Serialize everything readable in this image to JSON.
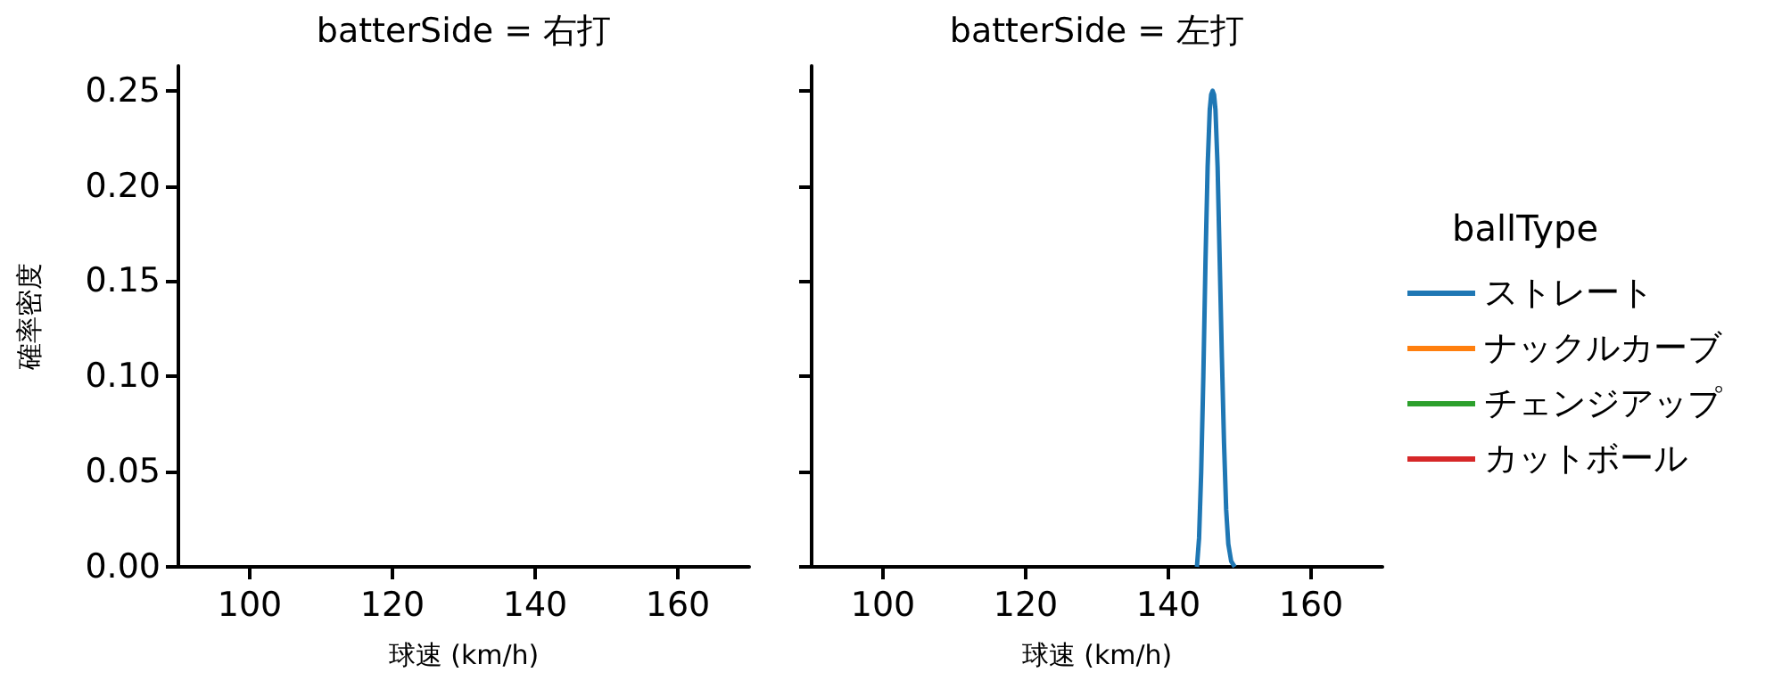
{
  "chart_data": [
    {
      "type": "line",
      "title": "batterSide = 右打",
      "xlabel": "球速 (km/h)",
      "ylabel": "確率密度",
      "xlim": [
        90,
        170
      ],
      "xticks": [
        100,
        120,
        140,
        160
      ],
      "ylim": [
        0,
        0.263
      ],
      "yticks": [
        {
          "value": 0,
          "label": "0.00"
        },
        {
          "value": 0.05,
          "label": "0.05"
        },
        {
          "value": 0.1,
          "label": "0.10"
        },
        {
          "value": 0.15,
          "label": "0.15"
        },
        {
          "value": 0.2,
          "label": "0.20"
        },
        {
          "value": 0.25,
          "label": "0.25"
        }
      ]
    },
    {
      "type": "line",
      "title": "batterSide = 左打",
      "xlabel": "球速 (km/h)",
      "legend_title": "ballType",
      "legend": "right",
      "marker": "none",
      "tick_labels": "x",
      "xlim": [
        90,
        170
      ],
      "xticks": [
        100,
        120,
        140,
        160
      ],
      "ylim": [
        0,
        0.263
      ],
      "yticks": [
        0,
        0.05,
        0.1,
        0.15,
        0.2,
        0.25
      ],
      "x": [
        144,
        144.3,
        144.6,
        144.9,
        145.2,
        145.5,
        145.8,
        146,
        146.2,
        146.4,
        146.6,
        146.9,
        147.2,
        147.5,
        147.8,
        148.1,
        148.4,
        148.8,
        149.3
      ],
      "series": [
        {
          "name": "ストレート",
          "color": "#1f77b4",
          "values": [
            0,
            0.015,
            0.05,
            0.1,
            0.16,
            0.21,
            0.24,
            0.248,
            0.25,
            0.248,
            0.24,
            0.21,
            0.16,
            0.11,
            0.065,
            0.03,
            0.012,
            0.003,
            0
          ]
        },
        {
          "name": "ナックルカーブ",
          "color": "#ff7f0e",
          "values": [
            null,
            null,
            null,
            null,
            null,
            null,
            null,
            null,
            null,
            null,
            null,
            null,
            null,
            null,
            null,
            null,
            null,
            null,
            null
          ]
        },
        {
          "name": "チェンジアップ",
          "color": "#2ca02c",
          "values": [
            null,
            null,
            null,
            null,
            null,
            null,
            null,
            null,
            null,
            null,
            null,
            null,
            null,
            null,
            null,
            null,
            null,
            null,
            null
          ]
        },
        {
          "name": "カットボール",
          "color": "#d62728",
          "values": [
            null,
            null,
            null,
            null,
            null,
            null,
            null,
            null,
            null,
            null,
            null,
            null,
            null,
            null,
            null,
            null,
            null,
            null,
            null
          ]
        }
      ]
    }
  ]
}
